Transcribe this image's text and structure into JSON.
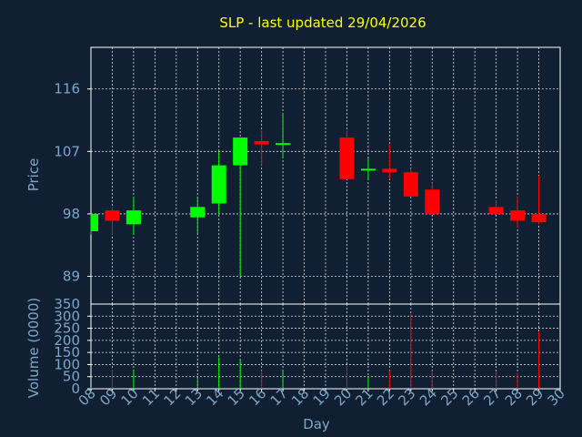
{
  "chart_data": [
    {
      "type": "candlestick",
      "title": "SLP - last updated 29/04/2026",
      "ylabel": "Price",
      "xlabel": "",
      "yticks": [
        89,
        98,
        107,
        116
      ],
      "ylim": [
        85,
        122
      ],
      "up_color": "#00ff00",
      "down_color": "#ff0000",
      "candles": [
        {
          "day": 8,
          "open": 95.5,
          "high": 98.0,
          "low": 95.0,
          "close": 98.0
        },
        {
          "day": 9,
          "open": 98.5,
          "high": 99.0,
          "low": 95.0,
          "close": 97.0
        },
        {
          "day": 10,
          "open": 96.5,
          "high": 100.5,
          "low": 95.0,
          "close": 98.5
        },
        {
          "day": 13,
          "open": 97.5,
          "high": 100.5,
          "low": 95.0,
          "close": 99.0
        },
        {
          "day": 14,
          "open": 99.5,
          "high": 107.0,
          "low": 98.0,
          "close": 105.0
        },
        {
          "day": 15,
          "open": 105.0,
          "high": 109.0,
          "low": 89.0,
          "close": 109.0
        },
        {
          "day": 16,
          "open": 108.5,
          "high": 110.0,
          "low": 105.0,
          "close": 108.0
        },
        {
          "day": 17,
          "open": 108.0,
          "high": 112.5,
          "low": 106.0,
          "close": 108.2
        },
        {
          "day": 20,
          "open": 109.0,
          "high": 110.0,
          "low": 103.0,
          "close": 103.0
        },
        {
          "day": 21,
          "open": 104.3,
          "high": 106.0,
          "low": 103.0,
          "close": 104.5
        },
        {
          "day": 22,
          "open": 104.5,
          "high": 108.0,
          "low": 103.0,
          "close": 104.0
        },
        {
          "day": 23,
          "open": 104.0,
          "high": 104.5,
          "low": 100.5,
          "close": 100.5
        },
        {
          "day": 24,
          "open": 101.5,
          "high": 102.5,
          "low": 98.0,
          "close": 98.0
        },
        {
          "day": 27,
          "open": 99.0,
          "high": 100.0,
          "low": 98.0,
          "close": 98.0
        },
        {
          "day": 28,
          "open": 98.5,
          "high": 100.5,
          "low": 96.0,
          "close": 97.0
        },
        {
          "day": 29,
          "open": 98.0,
          "high": 103.5,
          "low": 96.5,
          "close": 96.8
        }
      ]
    },
    {
      "type": "bar",
      "ylabel": "Volume (0000)",
      "xlabel": "Day",
      "yticks": [
        0,
        50,
        100,
        150,
        200,
        250,
        300
      ],
      "ylim_top_label": "350",
      "ylim": [
        0,
        350
      ],
      "x_ticks": [
        "08",
        "09",
        "10",
        "11",
        "12",
        "13",
        "14",
        "15",
        "16",
        "17",
        "18",
        "19",
        "20",
        "21",
        "22",
        "23",
        "24",
        "25",
        "26",
        "27",
        "28",
        "29",
        "30"
      ],
      "volumes": [
        {
          "day": 8,
          "value": 5,
          "dir": "up"
        },
        {
          "day": 9,
          "value": 80,
          "dir": "down"
        },
        {
          "day": 10,
          "value": 75,
          "dir": "up"
        },
        {
          "day": 13,
          "value": 45,
          "dir": "up"
        },
        {
          "day": 14,
          "value": 130,
          "dir": "up"
        },
        {
          "day": 15,
          "value": 120,
          "dir": "up"
        },
        {
          "day": 16,
          "value": 75,
          "dir": "down"
        },
        {
          "day": 17,
          "value": 80,
          "dir": "up"
        },
        {
          "day": 20,
          "value": 95,
          "dir": "down"
        },
        {
          "day": 21,
          "value": 50,
          "dir": "up"
        },
        {
          "day": 22,
          "value": 75,
          "dir": "down"
        },
        {
          "day": 23,
          "value": 310,
          "dir": "down"
        },
        {
          "day": 24,
          "value": 75,
          "dir": "down"
        },
        {
          "day": 27,
          "value": 70,
          "dir": "down"
        },
        {
          "day": 28,
          "value": 65,
          "dir": "down"
        },
        {
          "day": 29,
          "value": 235,
          "dir": "down"
        }
      ]
    }
  ]
}
